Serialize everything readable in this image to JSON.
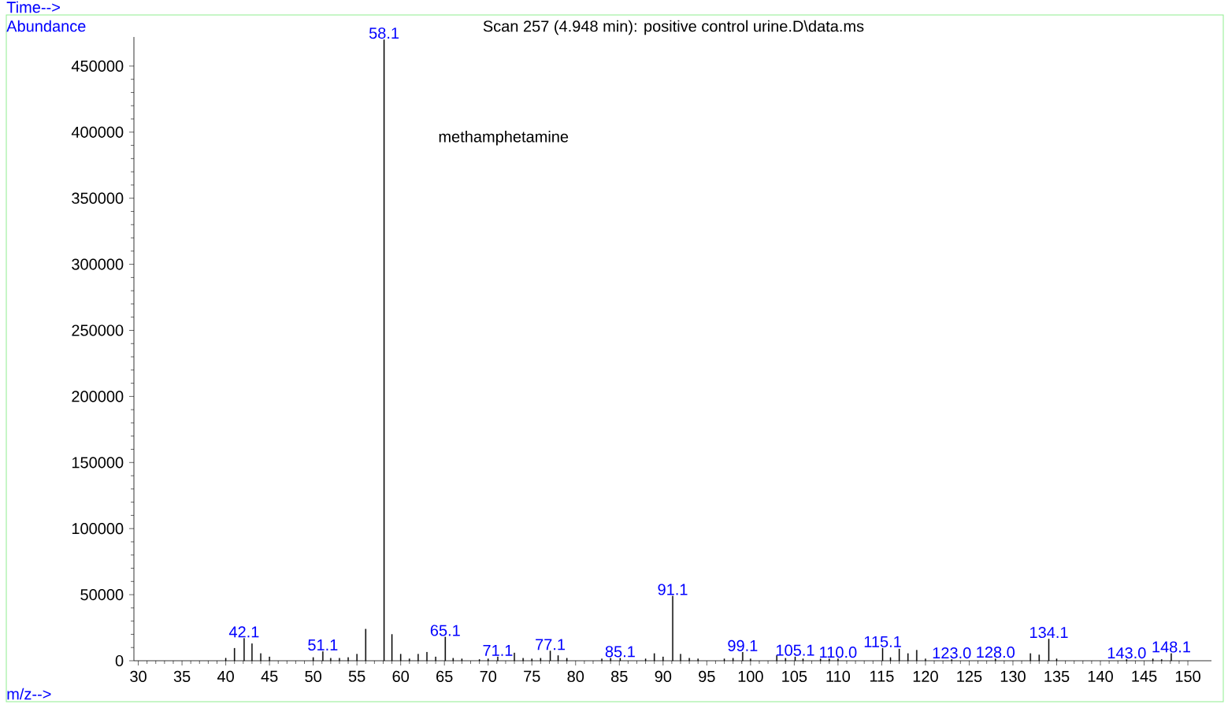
{
  "chart_data": {
    "type": "bar",
    "title": "Scan 257 (4.948 min): positive control urine.D\\data.ms",
    "xlabel": "m/z-->",
    "ylabel": "Abundance",
    "annotations": [
      "methamphetamine",
      "Time-->",
      {
        "text": "42.1",
        "x": 42.1,
        "y": 17000
      },
      {
        "text": "51.1",
        "x": 51.1,
        "y": 7000
      },
      {
        "text": "58.1",
        "x": 58.1,
        "y": 470000
      },
      {
        "text": "65.1",
        "x": 65.1,
        "y": 18000
      },
      {
        "text": "71.1",
        "x": 71.1,
        "y": 3000
      },
      {
        "text": "77.1",
        "x": 77.1,
        "y": 7500
      },
      {
        "text": "85.1",
        "x": 85.1,
        "y": 2000
      },
      {
        "text": "91.1",
        "x": 91.1,
        "y": 49000
      },
      {
        "text": "99.1",
        "x": 99.1,
        "y": 6500
      },
      {
        "text": "105.1",
        "x": 105.1,
        "y": 3000
      },
      {
        "text": "110.0",
        "x": 110.0,
        "y": 1500
      },
      {
        "text": "115.1",
        "x": 115.1,
        "y": 9500
      },
      {
        "text": "123.0",
        "x": 123.0,
        "y": 1000
      },
      {
        "text": "128.0",
        "x": 128.0,
        "y": 1500
      },
      {
        "text": "134.1",
        "x": 134.1,
        "y": 16500
      },
      {
        "text": "143.0",
        "x": 143.0,
        "y": 1000
      },
      {
        "text": "148.1",
        "x": 148.1,
        "y": 5500
      }
    ],
    "x": [
      40,
      41,
      42.1,
      43,
      44,
      45,
      50,
      51.1,
      52,
      53,
      54,
      55,
      56,
      58.1,
      59,
      60,
      61,
      62,
      63,
      64,
      65.1,
      66,
      67,
      69,
      70,
      71.1,
      73,
      74,
      75,
      76,
      77.1,
      78,
      79,
      83,
      84,
      85.1,
      88,
      89,
      90,
      91.1,
      92,
      93,
      94,
      97,
      98,
      99.1,
      100,
      103,
      104,
      105.1,
      106,
      108,
      109,
      110.0,
      115.1,
      116,
      117,
      118,
      119,
      120,
      123.0,
      128.0,
      132,
      133,
      134.1,
      135,
      143.0,
      146,
      147,
      148.1
    ],
    "values": [
      2000,
      9500,
      17000,
      13000,
      5500,
      3000,
      2500,
      7000,
      2000,
      2000,
      2500,
      5000,
      24000,
      470000,
      20000,
      5000,
      1500,
      5000,
      6500,
      3000,
      18000,
      2000,
      1500,
      1000,
      1500,
      3000,
      6000,
      2000,
      1500,
      2000,
      7500,
      4000,
      2000,
      1500,
      2000,
      2000,
      1500,
      5500,
      3000,
      49000,
      5000,
      2000,
      1500,
      1500,
      2000,
      6500,
      1500,
      4000,
      2000,
      3000,
      1500,
      1500,
      1500,
      1500,
      9500,
      2500,
      9000,
      5500,
      8000,
      1500,
      1000,
      1500,
      5500,
      4500,
      16500,
      1500,
      1000,
      1500,
      1000,
      5500
    ],
    "color": "#000000",
    "xlim": [
      29.5,
      152.7
    ],
    "ylim": [
      0,
      472000
    ],
    "xticks": [
      30,
      35,
      40,
      45,
      50,
      55,
      60,
      65,
      70,
      75,
      80,
      85,
      90,
      95,
      100,
      105,
      110,
      115,
      120,
      125,
      130,
      135,
      140,
      145,
      150
    ],
    "yticks": [
      0,
      50000,
      100000,
      150000,
      200000,
      250000,
      300000,
      350000,
      400000,
      450000
    ]
  }
}
